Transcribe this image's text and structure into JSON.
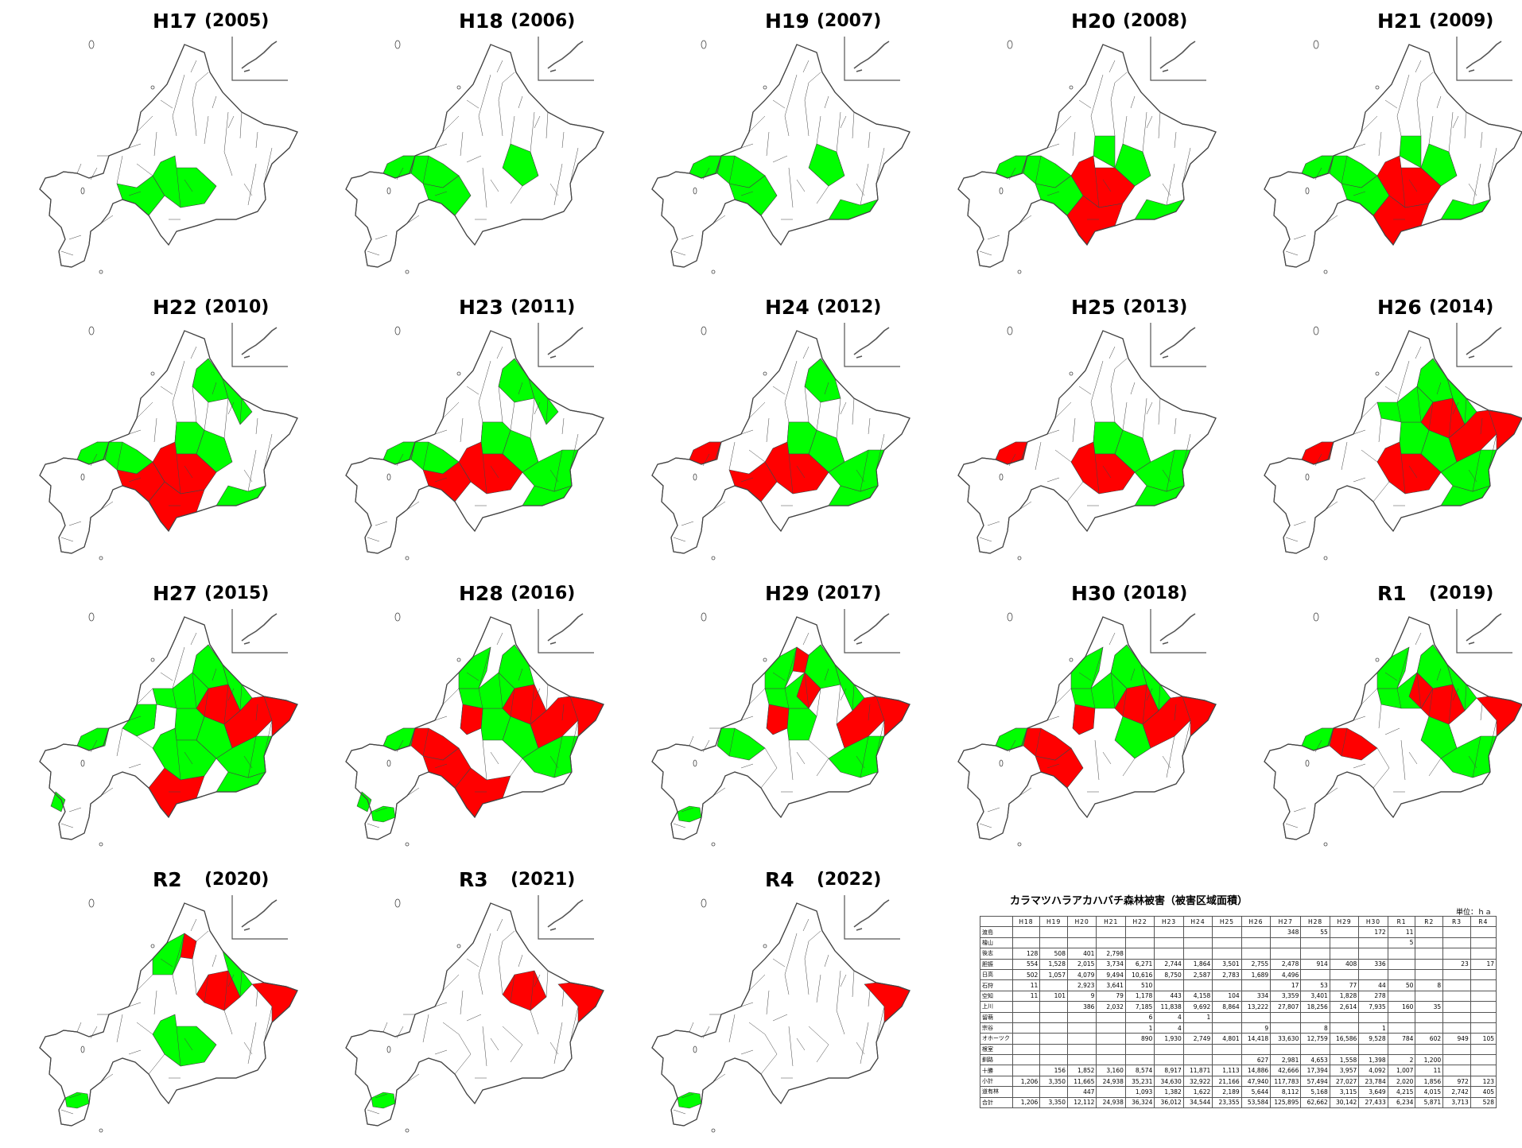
{
  "colors": {
    "severe": "#ff0000",
    "damage": "#00ff00",
    "outline": "#444444"
  },
  "panels": [
    {
      "era": "H17",
      "year": "(2005)",
      "damage": [
        "Q",
        "L"
      ],
      "severe": []
    },
    {
      "era": "H18",
      "year": "(2006)",
      "damage": [
        "M",
        "R",
        "K",
        "Q"
      ],
      "severe": []
    },
    {
      "era": "H19",
      "year": "(2007)",
      "damage": [
        "M",
        "R",
        "K",
        "Q",
        "T"
      ],
      "severe": []
    },
    {
      "era": "H20",
      "year": "(2008)",
      "damage": [
        "M",
        "R",
        "K",
        "Q",
        "T",
        "U"
      ],
      "severe": [
        "L",
        "P"
      ]
    },
    {
      "era": "H21",
      "year": "(2009)",
      "damage": [
        "M",
        "R",
        "K",
        "Q",
        "T",
        "U"
      ],
      "severe": [
        "L",
        "P"
      ]
    },
    {
      "era": "H22",
      "year": "(2010)",
      "damage": [
        "M",
        "R",
        "K",
        "T",
        "U",
        "C",
        "E",
        "J"
      ],
      "severe": [
        "L",
        "Q",
        "P"
      ]
    },
    {
      "era": "H23",
      "year": "(2011)",
      "damage": [
        "M",
        "R",
        "K",
        "T",
        "U",
        "C",
        "E",
        "J",
        "O"
      ],
      "severe": [
        "L",
        "Q"
      ]
    },
    {
      "era": "H24",
      "year": "(2012)",
      "damage": [
        "K",
        "T",
        "U",
        "C",
        "J",
        "O"
      ],
      "severe": [
        "L",
        "Q",
        "R"
      ]
    },
    {
      "era": "H25",
      "year": "(2013)",
      "damage": [
        "K",
        "T",
        "U",
        "J",
        "O"
      ],
      "severe": [
        "L",
        "R"
      ]
    },
    {
      "era": "H26",
      "year": "(2014)",
      "damage": [
        "K",
        "T",
        "C",
        "E",
        "J",
        "O",
        "F"
      ],
      "severe": [
        "L",
        "R",
        "S",
        "G",
        "N"
      ]
    },
    {
      "era": "H27",
      "year": "(2015)",
      "damage": [
        "K",
        "T",
        "C",
        "E",
        "J",
        "O",
        "F",
        "L",
        "R",
        "H",
        "W"
      ],
      "severe": [
        "S",
        "G",
        "N",
        "P"
      ]
    },
    {
      "era": "H28",
      "year": "(2016)",
      "damage": [
        "K",
        "C",
        "J",
        "O",
        "F",
        "D",
        "R",
        "W",
        "V"
      ],
      "severe": [
        "S",
        "G",
        "N",
        "P",
        "M",
        "Q",
        "I"
      ]
    },
    {
      "era": "H29",
      "year": "(2017)",
      "damage": [
        "C",
        "E",
        "J",
        "F",
        "D",
        "O",
        "M",
        "V"
      ],
      "severe": [
        "S",
        "N",
        "B",
        "I",
        "X"
      ]
    },
    {
      "era": "H30",
      "year": "(2018)",
      "damage": [
        "C",
        "E",
        "F",
        "D",
        "K",
        "R"
      ],
      "severe": [
        "S",
        "G",
        "N",
        "I",
        "Q",
        "M"
      ]
    },
    {
      "era": "R1",
      "year": "(2019)",
      "damage": [
        "C",
        "E",
        "F",
        "D",
        "K",
        "R",
        "O"
      ],
      "severe": [
        "S",
        "G",
        "M",
        "X"
      ]
    },
    {
      "era": "R2",
      "year": "(2020)",
      "damage": [
        "E",
        "V",
        "L",
        "D"
      ],
      "severe": [
        "S",
        "G",
        "B"
      ]
    },
    {
      "era": "R3",
      "year": "(2021)",
      "damage": [
        "V"
      ],
      "severe": [
        "S",
        "G"
      ]
    },
    {
      "era": "R4",
      "year": "(2022)",
      "damage": [
        "V"
      ],
      "severe": [
        "S"
      ]
    }
  ],
  "table": {
    "title": "カラマツハラアカハバチ森林被害（被害区域面積）",
    "unit": "単位：ｈａ",
    "columns": [
      "H18",
      "H19",
      "H20",
      "H21",
      "H22",
      "H23",
      "H24",
      "H25",
      "H26",
      "H27",
      "H28",
      "H29",
      "H30",
      "R1",
      "R2",
      "R3",
      "R4"
    ],
    "rows": [
      {
        "region": "渡島",
        "values": [
          "",
          "",
          "",
          "",
          "",
          "",
          "",
          "",
          "",
          "348",
          "55",
          "",
          "172",
          "11",
          "",
          "",
          ""
        ]
      },
      {
        "region": "檜山",
        "values": [
          "",
          "",
          "",
          "",
          "",
          "",
          "",
          "",
          "",
          "",
          "",
          "",
          "",
          "5",
          "",
          "",
          ""
        ]
      },
      {
        "region": "後志",
        "values": [
          "128",
          "508",
          "401",
          "2,798",
          "",
          "",
          "",
          "",
          "",
          "",
          "",
          "",
          "",
          "",
          "",
          "",
          ""
        ]
      },
      {
        "region": "胆振",
        "values": [
          "554",
          "1,528",
          "2,015",
          "3,734",
          "6,271",
          "2,744",
          "1,864",
          "3,501",
          "2,755",
          "2,478",
          "914",
          "408",
          "336",
          "",
          "",
          "23",
          "17"
        ]
      },
      {
        "region": "日高",
        "values": [
          "502",
          "1,057",
          "4,079",
          "9,494",
          "10,616",
          "8,750",
          "2,587",
          "2,783",
          "1,689",
          "4,496",
          "",
          "",
          "",
          "",
          "",
          "",
          ""
        ]
      },
      {
        "region": "石狩",
        "values": [
          "11",
          "",
          "2,923",
          "3,641",
          "510",
          "",
          "",
          "",
          "",
          "17",
          "53",
          "77",
          "44",
          "50",
          "8",
          "",
          ""
        ]
      },
      {
        "region": "空知",
        "values": [
          "11",
          "101",
          "9",
          "79",
          "1,178",
          "443",
          "4,158",
          "104",
          "334",
          "3,359",
          "3,401",
          "1,828",
          "278",
          "",
          "",
          "",
          ""
        ]
      },
      {
        "region": "上川",
        "values": [
          "",
          "",
          "386",
          "2,032",
          "7,185",
          "11,838",
          "9,692",
          "8,864",
          "13,222",
          "27,807",
          "18,256",
          "2,614",
          "7,935",
          "160",
          "35",
          "",
          ""
        ]
      },
      {
        "region": "留萌",
        "values": [
          "",
          "",
          "",
          "",
          "6",
          "4",
          "1",
          "",
          "",
          "",
          "",
          "",
          "",
          "",
          "",
          "",
          ""
        ]
      },
      {
        "region": "宗谷",
        "values": [
          "",
          "",
          "",
          "",
          "1",
          "4",
          "",
          "",
          "9",
          "",
          "8",
          "",
          "1",
          "",
          "",
          "",
          ""
        ]
      },
      {
        "region": "オホーツク",
        "values": [
          "",
          "",
          "",
          "",
          "890",
          "1,930",
          "2,749",
          "4,801",
          "14,418",
          "33,630",
          "12,759",
          "16,586",
          "9,528",
          "784",
          "602",
          "949",
          "105"
        ]
      },
      {
        "region": "根室",
        "values": [
          "",
          "",
          "",
          "",
          "",
          "",
          "",
          "",
          "",
          "",
          "",
          "",
          "",
          "",
          "",
          "",
          ""
        ]
      },
      {
        "region": "釧路",
        "values": [
          "",
          "",
          "",
          "",
          "",
          "",
          "",
          "",
          "627",
          "2,981",
          "4,653",
          "1,558",
          "1,398",
          "2",
          "1,200",
          "",
          ""
        ]
      },
      {
        "region": "十勝",
        "values": [
          "",
          "156",
          "1,852",
          "3,160",
          "8,574",
          "8,917",
          "11,871",
          "1,113",
          "14,886",
          "42,666",
          "17,394",
          "3,957",
          "4,092",
          "1,007",
          "11",
          "",
          ""
        ]
      },
      {
        "region": "小計",
        "values": [
          "1,206",
          "3,350",
          "11,665",
          "24,938",
          "35,231",
          "34,630",
          "32,922",
          "21,166",
          "47,940",
          "117,783",
          "57,494",
          "27,027",
          "23,784",
          "2,020",
          "1,856",
          "972",
          "123"
        ]
      },
      {
        "region": "道有林",
        "values": [
          "",
          "",
          "447",
          "",
          "1,093",
          "1,382",
          "1,622",
          "2,189",
          "5,644",
          "8,112",
          "5,168",
          "3,115",
          "3,649",
          "4,215",
          "4,015",
          "2,742",
          "405"
        ]
      },
      {
        "region": "合計",
        "values": [
          "1,206",
          "3,350",
          "12,112",
          "24,938",
          "36,324",
          "36,012",
          "34,544",
          "23,355",
          "53,584",
          "125,895",
          "62,662",
          "30,142",
          "27,433",
          "6,234",
          "5,871",
          "3,713",
          "528"
        ]
      }
    ]
  }
}
